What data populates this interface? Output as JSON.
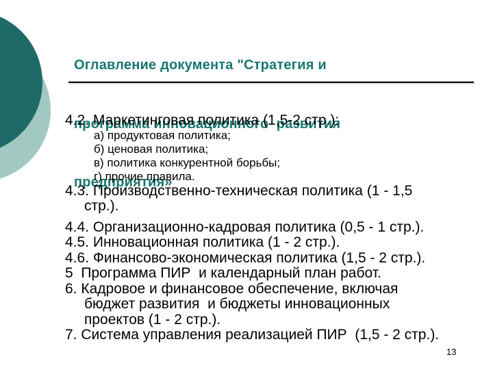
{
  "title": {
    "lines": [
      "Оглавление документа \"Стратегия и",
      "программа инновационного  развития",
      "предприятия»"
    ],
    "color": "#18776F"
  },
  "decoration": {
    "dark_circle_color": "#1F6A66",
    "light_circle_color": "#A2C8C2"
  },
  "toc": {
    "lines": [
      {
        "text": "4.2. Маркетинговая политика (1,5-2 стр.):"
      },
      {
        "text": "а) продуктовая политика;"
      },
      {
        "text": "б) ценовая политика;"
      },
      {
        "text": "в) политика конкурентной борьбы;"
      },
      {
        "text": "г) прочие правила."
      },
      {
        "text": "4.3. Производственно-техническая политика (1 - 1,5"
      },
      {
        "text": "стр.)."
      },
      {
        "text": "4.4. Организационно-кадровая политика (0,5 - 1 стр.)."
      },
      {
        "text": "4.5. Инновационная политика (1 - 2 стр.)."
      },
      {
        "text": "4.6. Финансово-экономическая политика (1,5 - 2 стр.)."
      },
      {
        "text": "5  Программа ПИР  и календарный план работ."
      },
      {
        "text": "6. Кадровое и финансовое обеспечение, включая"
      },
      {
        "text": "бюджет развития  и бюджеты инновационных"
      },
      {
        "text": "проектов (1 - 2 стр.)."
      },
      {
        "text": "7. Система управления реализацией ПИР  (1,5 - 2 стр.)."
      }
    ]
  },
  "footer": {
    "page_number": "13"
  }
}
